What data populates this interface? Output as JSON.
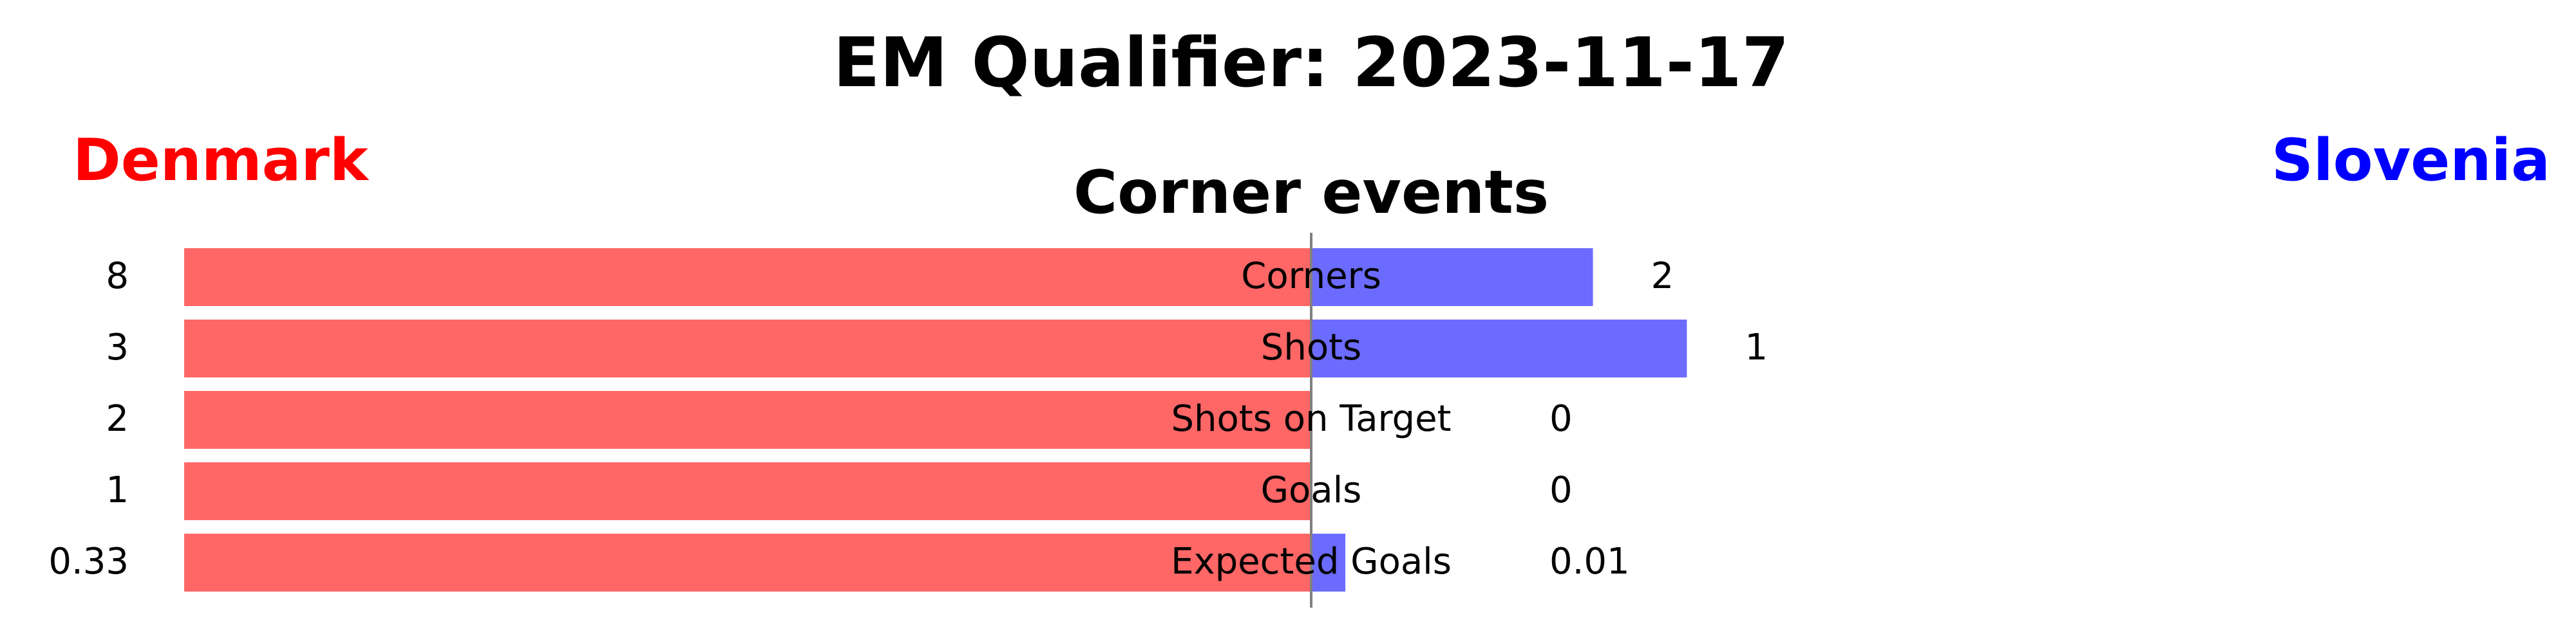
{
  "title": "EM Qualifier: 2023-11-17",
  "teams": {
    "left": {
      "name": "Denmark",
      "color": "#ff0000"
    },
    "right": {
      "name": "Slovenia",
      "color": "#0000ff"
    }
  },
  "chart_data": {
    "type": "bar",
    "orientation": "horizontal-diverging",
    "title": "Corner events",
    "categories": [
      "Corners",
      "Shots",
      "Shots on Target",
      "Goals",
      "Expected Goals"
    ],
    "series": [
      {
        "name": "Denmark",
        "side": "left",
        "color": "#ff6666",
        "values": [
          8,
          3,
          2,
          1,
          0.33
        ],
        "value_labels": [
          "8",
          "3",
          "2",
          "1",
          "0.33"
        ]
      },
      {
        "name": "Slovenia",
        "side": "right",
        "color": "#6b6bff",
        "values": [
          2,
          1,
          0,
          0,
          0.01
        ],
        "value_labels": [
          "2",
          "1",
          "0",
          "0",
          "0.01"
        ]
      }
    ],
    "normalization": "each category scaled to its maximum across both teams",
    "center_line_color": "#808080",
    "grid": false
  }
}
